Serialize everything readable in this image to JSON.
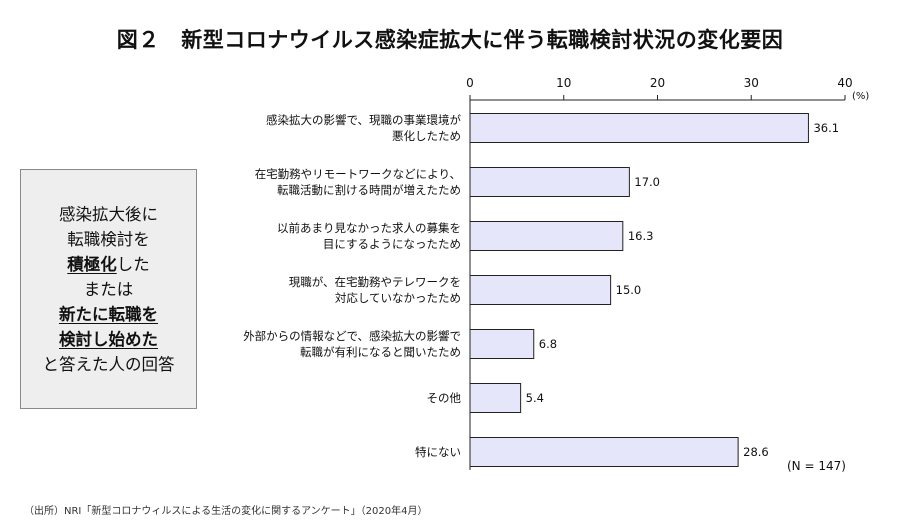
{
  "title": "図２　新型コロナウイルス感染症拡大に伴う転職検討状況の変化要因",
  "side_box": {
    "line1": "感染拡大後に",
    "line2": "転職検討を",
    "line3a": "積極化",
    "line3b": "した",
    "line4": "または",
    "line5": "新たに転職を",
    "line6": "検討し始めた",
    "line7": "と答えた人の回答"
  },
  "sample_size": "(N = 147)",
  "source": "（出所）NRI「新型コロナウィルスによる生活の変化に関するアンケート」（2020年4月）",
  "colors": {
    "bar_fill": "#e6e6fb",
    "bar_stroke": "#222222",
    "axis": "#222222"
  },
  "chart_data": {
    "type": "bar",
    "orientation": "horizontal",
    "unit": "(%)",
    "xlim": [
      0,
      40
    ],
    "ticks": [
      0,
      10,
      20,
      30,
      40
    ],
    "categories": [
      [
        "感染拡大の影響で、現職の事業環境が",
        "悪化したため"
      ],
      [
        "在宅勤務やリモートワークなどにより、",
        "転職活動に割ける時間が増えたため"
      ],
      [
        "以前あまり見なかった求人の募集を",
        "目にするようになったため"
      ],
      [
        "現職が、在宅勤務やテレワークを",
        "対応していなかったため"
      ],
      [
        "外部からの情報などで、感染拡大の影響で",
        "転職が有利になると聞いたため"
      ],
      [
        "その他"
      ],
      [
        "特にない"
      ]
    ],
    "values": [
      36.1,
      17.0,
      16.3,
      15.0,
      6.8,
      5.4,
      28.6
    ],
    "value_labels": [
      "36.1",
      "17.0",
      "16.3",
      "15.0",
      "6.8",
      "5.4",
      "28.6"
    ]
  }
}
